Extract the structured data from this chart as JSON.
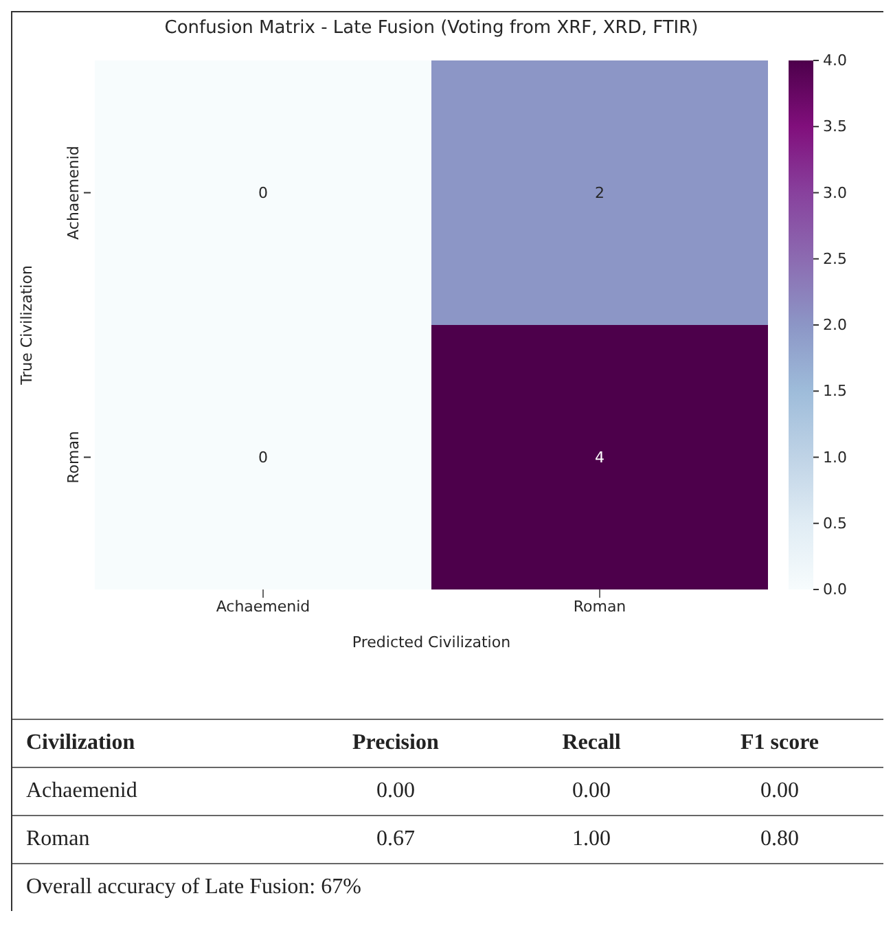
{
  "chart_data": [
    {
      "type": "heatmap",
      "title": "Confusion Matrix - Late Fusion (Voting from XRF, XRD, FTIR)",
      "xlabel": "Predicted Civilization",
      "ylabel": "True Civilization",
      "categories": [
        "Achaemenid",
        "Roman"
      ],
      "y_categories": [
        "Achaemenid",
        "Roman"
      ],
      "cells": [
        [
          0,
          2
        ],
        [
          0,
          4
        ]
      ],
      "data_labels": true,
      "clim": [
        0,
        4
      ],
      "cticks": [
        {
          "value": 0,
          "label": "0.0"
        },
        {
          "value": 0.5,
          "label": "0.5"
        },
        {
          "value": 1,
          "label": "1.0"
        },
        {
          "value": 1.5,
          "label": "1.5"
        },
        {
          "value": 2,
          "label": "2.0"
        },
        {
          "value": 2.5,
          "label": "2.5"
        },
        {
          "value": 3,
          "label": "3.0"
        },
        {
          "value": 3.5,
          "label": "3.5"
        },
        {
          "value": 4,
          "label": "4.0"
        }
      ]
    },
    {
      "type": "other",
      "xlabel": "Civilization",
      "data_labels": true,
      "categories": [
        "Achaemenid",
        "Roman"
      ],
      "series": [
        {
          "name": "Precision",
          "values": [
            0,
            0.67
          ],
          "value_labels": [
            "0.00",
            "0.67"
          ]
        },
        {
          "name": "Recall",
          "values": [
            0,
            1
          ],
          "value_labels": [
            "0.00",
            "1.00"
          ]
        },
        {
          "name": "F1 score",
          "values": [
            0,
            0.8
          ],
          "value_labels": [
            "0.00",
            "0.80"
          ]
        }
      ],
      "annotations": [
        "Overall accuracy of Late Fusion: 67%"
      ]
    }
  ]
}
